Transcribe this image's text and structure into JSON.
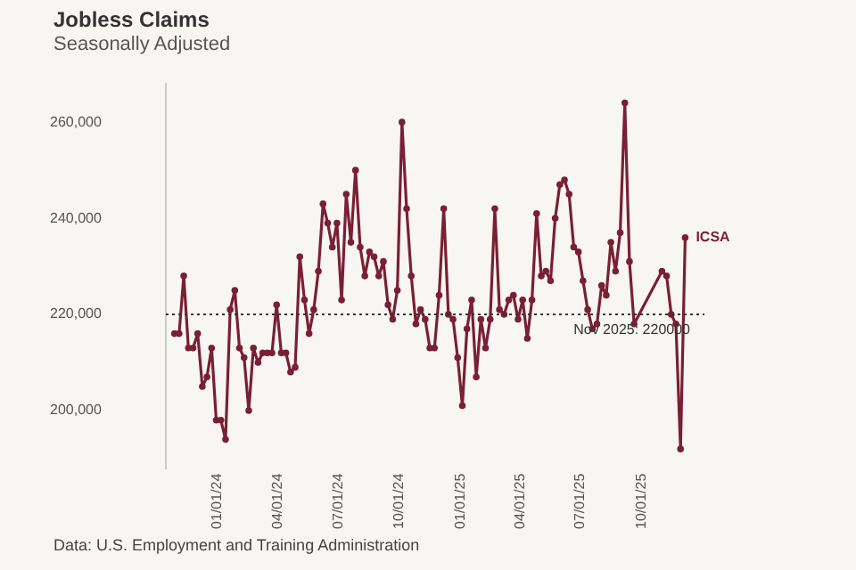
{
  "chart_data": {
    "type": "line",
    "title": "Jobless Claims",
    "subtitle": "Seasonally Adjusted",
    "annotations": [
      "Data: U.S. Employment and Training Administration"
    ],
    "x": [
      "2023-10-28",
      "2023-11-04",
      "2023-11-11",
      "2023-11-18",
      "2023-11-25",
      "2023-12-02",
      "2023-12-09",
      "2023-12-16",
      "2023-12-23",
      "2023-12-30",
      "2024-01-06",
      "2024-01-13",
      "2024-01-20",
      "2024-01-27",
      "2024-02-03",
      "2024-02-10",
      "2024-02-17",
      "2024-02-24",
      "2024-03-02",
      "2024-03-09",
      "2024-03-16",
      "2024-03-23",
      "2024-03-30",
      "2024-04-06",
      "2024-04-13",
      "2024-04-20",
      "2024-04-27",
      "2024-05-04",
      "2024-05-11",
      "2024-05-18",
      "2024-05-25",
      "2024-06-01",
      "2024-06-08",
      "2024-06-15",
      "2024-06-22",
      "2024-06-29",
      "2024-07-06",
      "2024-07-13",
      "2024-07-20",
      "2024-07-27",
      "2024-08-03",
      "2024-08-10",
      "2024-08-17",
      "2024-08-24",
      "2024-08-31",
      "2024-09-07",
      "2024-09-14",
      "2024-09-21",
      "2024-09-28",
      "2024-10-05",
      "2024-10-12",
      "2024-10-19",
      "2024-10-26",
      "2024-11-02",
      "2024-11-09",
      "2024-11-16",
      "2024-11-23",
      "2024-11-30",
      "2024-12-07",
      "2024-12-14",
      "2024-12-21",
      "2024-12-28",
      "2025-01-04",
      "2025-01-11",
      "2025-01-18",
      "2025-01-25",
      "2025-02-01",
      "2025-02-08",
      "2025-02-15",
      "2025-02-22",
      "2025-03-01",
      "2025-03-08",
      "2025-03-15",
      "2025-03-22",
      "2025-03-29",
      "2025-04-05",
      "2025-04-12",
      "2025-04-19",
      "2025-04-26",
      "2025-05-03",
      "2025-05-10",
      "2025-05-17",
      "2025-05-24",
      "2025-05-31",
      "2025-06-07",
      "2025-06-14",
      "2025-06-21",
      "2025-06-28",
      "2025-07-05",
      "2025-07-12",
      "2025-07-19",
      "2025-07-26",
      "2025-08-02",
      "2025-08-09",
      "2025-08-16",
      "2025-08-23",
      "2025-08-30",
      "2025-09-06",
      "2025-09-13",
      "2025-09-20",
      "2025-11-01",
      "2025-11-08",
      "2025-11-15",
      "2025-11-22",
      "2025-11-29",
      "2025-12-06"
    ],
    "series": [
      {
        "name": "ICSA",
        "color": "#7a1f35",
        "values": [
          216000,
          216000,
          228000,
          213000,
          213000,
          216000,
          205000,
          207000,
          213000,
          198000,
          198000,
          194000,
          221000,
          225000,
          213000,
          211000,
          200000,
          213000,
          210000,
          212000,
          212000,
          212000,
          222000,
          212000,
          212000,
          208000,
          209000,
          232000,
          223000,
          216000,
          221000,
          229000,
          243000,
          239000,
          234000,
          239000,
          223000,
          245000,
          235000,
          250000,
          234000,
          228000,
          233000,
          232000,
          228000,
          231000,
          222000,
          219000,
          225000,
          260000,
          242000,
          228000,
          218000,
          221000,
          219000,
          213000,
          213000,
          224000,
          242000,
          220000,
          219000,
          211000,
          201000,
          217000,
          223000,
          207000,
          219000,
          213000,
          219000,
          242000,
          221000,
          220000,
          223000,
          224000,
          219000,
          223000,
          215000,
          223000,
          241000,
          228000,
          229000,
          227000,
          240000,
          247000,
          248000,
          245000,
          234000,
          233000,
          227000,
          221000,
          217000,
          218000,
          226000,
          224000,
          235000,
          229000,
          237000,
          264000,
          231000,
          218000,
          229000,
          228000,
          220000,
          218000,
          192000,
          236000
        ]
      }
    ],
    "xlim": [
      "2023-10-15",
      "2026-01-04"
    ],
    "xticks": [
      {
        "value": "2024-01-01",
        "label": "01/01/24"
      },
      {
        "value": "2024-04-01",
        "label": "04/01/24"
      },
      {
        "value": "2024-07-01",
        "label": "07/01/24"
      },
      {
        "value": "2024-10-01",
        "label": "10/01/24"
      },
      {
        "value": "2025-01-01",
        "label": "01/01/25"
      },
      {
        "value": "2025-04-01",
        "label": "04/01/25"
      },
      {
        "value": "2025-07-01",
        "label": "07/01/25"
      },
      {
        "value": "2025-10-01",
        "label": "10/01/25"
      }
    ],
    "ylim": [
      188000,
      268000
    ],
    "yticks": [
      {
        "value": 200000,
        "label": "200,000"
      },
      {
        "value": 220000,
        "label": "220,000"
      },
      {
        "value": 240000,
        "label": "240,000"
      },
      {
        "value": 260000,
        "label": "260,000"
      }
    ],
    "ref_lines": [
      {
        "axis": "y",
        "value": 220000,
        "label": "Nov 2025: 220000",
        "color": "#333333",
        "line_style": "dotted"
      }
    ],
    "marker": "circle",
    "grid": false,
    "legend": false
  }
}
